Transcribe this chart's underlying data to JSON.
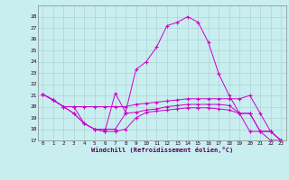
{
  "background_color": "#c8eef0",
  "grid_color": "#aaccd0",
  "line_color": "#cc00cc",
  "ylim": [
    17,
    29
  ],
  "xlim": [
    0,
    23
  ],
  "yticks": [
    17,
    18,
    19,
    20,
    21,
    22,
    23,
    24,
    25,
    26,
    27,
    28
  ],
  "xticks": [
    0,
    1,
    2,
    3,
    4,
    5,
    6,
    7,
    8,
    9,
    10,
    11,
    12,
    13,
    14,
    15,
    16,
    17,
    18,
    19,
    20,
    21,
    22,
    23
  ],
  "xlabel": "Windchill (Refroidissement éolien,°C)",
  "line_top": [
    21.1,
    20.6,
    20.0,
    20.0,
    18.5,
    18.0,
    17.8,
    21.2,
    19.5,
    23.3,
    24.0,
    25.3,
    27.2,
    27.5,
    28.0,
    27.5,
    25.7,
    22.9,
    21.0,
    19.4,
    17.8,
    17.8,
    17.0,
    17.0
  ],
  "line_mid_up": [
    21.1,
    20.6,
    20.0,
    20.0,
    20.0,
    20.0,
    20.0,
    20.0,
    20.0,
    20.2,
    20.3,
    20.4,
    20.5,
    20.6,
    20.7,
    20.7,
    20.7,
    20.7,
    20.7,
    20.7,
    21.0,
    19.4,
    17.8,
    17.0
  ],
  "line_mid": [
    21.1,
    20.6,
    20.0,
    19.4,
    18.5,
    18.0,
    18.0,
    18.0,
    19.4,
    19.5,
    19.7,
    19.8,
    20.0,
    20.1,
    20.2,
    20.2,
    20.2,
    20.2,
    20.1,
    19.4,
    19.4,
    17.8,
    17.8,
    17.0
  ],
  "line_bot": [
    21.1,
    20.6,
    20.0,
    19.4,
    18.5,
    18.0,
    17.8,
    17.8,
    18.0,
    19.0,
    19.5,
    19.6,
    19.7,
    19.8,
    19.9,
    19.9,
    19.9,
    19.8,
    19.7,
    19.4,
    19.4,
    17.8,
    17.8,
    17.0
  ]
}
